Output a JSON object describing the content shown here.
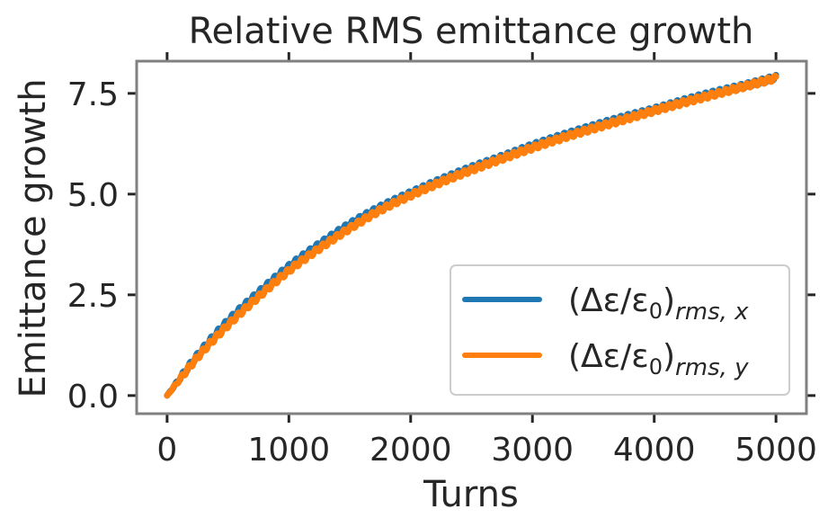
{
  "chart_data": {
    "type": "line",
    "title": "Relative RMS emittance growth",
    "xlabel": "Turns",
    "ylabel": "Emittance growth",
    "xlim": [
      -250,
      5250
    ],
    "ylim": [
      -0.45,
      8.3
    ],
    "x_ticks": [
      0,
      1000,
      2000,
      3000,
      4000,
      5000
    ],
    "x_tick_labels": [
      "0",
      "1000",
      "2000",
      "3000",
      "4000",
      "5000"
    ],
    "y_ticks": [
      0.0,
      2.5,
      5.0,
      7.5
    ],
    "y_tick_labels": [
      "0.0",
      "2.5",
      "5.0",
      "7.5"
    ],
    "grid": false,
    "legend_position": "lower-right",
    "x": [
      0,
      250,
      500,
      750,
      1000,
      1250,
      1500,
      1750,
      2000,
      2250,
      2500,
      2750,
      3000,
      3250,
      3500,
      3750,
      4000,
      4250,
      4500,
      4750,
      5000
    ],
    "series": [
      {
        "name": "(Δε/ε0)rms,x",
        "legend": {
          "main": "(Δε/ε",
          "sub0": "0",
          "close": ")",
          "sub": "rms, x"
        },
        "color": "#1f77b4",
        "values": [
          0.0,
          1.0,
          1.85,
          2.55,
          3.2,
          3.75,
          4.25,
          4.67,
          5.02,
          5.35,
          5.65,
          5.92,
          6.2,
          6.45,
          6.68,
          6.9,
          7.1,
          7.32,
          7.52,
          7.7,
          7.9
        ]
      },
      {
        "name": "(Δε/ε0)rms,y",
        "legend": {
          "main": "(Δε/ε",
          "sub0": "0",
          "close": ")",
          "sub": "rms, y"
        },
        "color": "#ff7f0e",
        "values": [
          0.0,
          0.95,
          1.75,
          2.45,
          3.1,
          3.65,
          4.15,
          4.6,
          4.97,
          5.3,
          5.6,
          5.88,
          6.15,
          6.4,
          6.63,
          6.85,
          7.07,
          7.28,
          7.48,
          7.68,
          7.88
        ]
      }
    ]
  }
}
